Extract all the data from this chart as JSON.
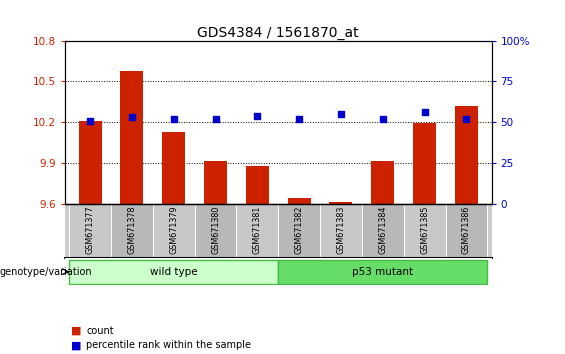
{
  "title": "GDS4384 / 1561870_at",
  "samples": [
    "GSM671377",
    "GSM671378",
    "GSM671379",
    "GSM671380",
    "GSM671381",
    "GSM671382",
    "GSM671383",
    "GSM671384",
    "GSM671385",
    "GSM671386"
  ],
  "bar_values": [
    10.21,
    10.58,
    10.13,
    9.91,
    9.88,
    9.64,
    9.61,
    9.91,
    10.19,
    10.32
  ],
  "scatter_values": [
    51,
    53,
    52,
    52,
    54,
    52,
    55,
    52,
    56,
    52
  ],
  "ylim_left": [
    9.6,
    10.8
  ],
  "ylim_right": [
    0,
    100
  ],
  "yticks_left": [
    9.6,
    9.9,
    10.2,
    10.5,
    10.8
  ],
  "yticks_right": [
    0,
    25,
    50,
    75,
    100
  ],
  "bar_color": "#cc2200",
  "scatter_color": "#0000cc",
  "wild_type_color": "#ccffcc",
  "wild_type_border": "#44bb44",
  "p53_color": "#66dd66",
  "p53_border": "#44bb44",
  "wild_type_label": "wild type",
  "p53_label": "p53 mutant",
  "wild_type_indices": [
    0,
    1,
    2,
    3,
    4
  ],
  "p53_indices": [
    5,
    6,
    7,
    8,
    9
  ],
  "legend_bar_label": "count",
  "legend_scatter_label": "percentile rank within the sample",
  "genotype_label": "genotype/variation",
  "title_fontsize": 10,
  "tick_fontsize": 7.5,
  "label_fontsize": 8,
  "background_color": "#ffffff",
  "grid_color": "#000000",
  "ylabel_left_color": "#cc2200",
  "ylabel_right_color": "#0000cc",
  "sample_bg_color": "#cccccc",
  "ytick_right_labels": [
    "0",
    "25",
    "50",
    "75",
    "100%"
  ]
}
